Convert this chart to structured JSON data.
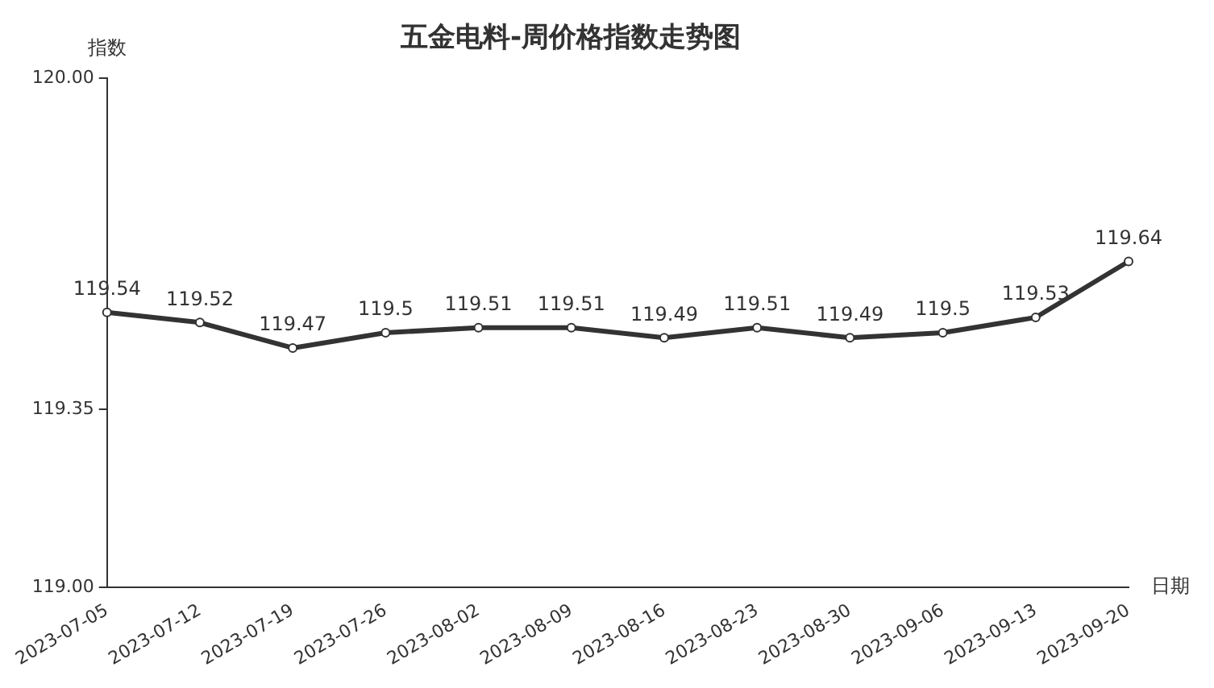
{
  "chart_data": {
    "type": "line",
    "title": "五金电料-周价格指数走势图",
    "xlabel": "日期",
    "ylabel": "指数",
    "categories": [
      "2023-07-05",
      "2023-07-12",
      "2023-07-19",
      "2023-07-26",
      "2023-08-02",
      "2023-08-09",
      "2023-08-16",
      "2023-08-23",
      "2023-08-30",
      "2023-09-06",
      "2023-09-13",
      "2023-09-20"
    ],
    "series": [
      {
        "color": "#333333",
        "values": [
          119.54,
          119.52,
          119.47,
          119.5,
          119.51,
          119.51,
          119.49,
          119.51,
          119.49,
          119.5,
          119.53,
          119.64
        ]
      }
    ],
    "ylim": [
      119,
      120
    ],
    "yticks": [
      {
        "value": 119,
        "label": "119.00"
      },
      {
        "value": 119.35,
        "label": "119.35"
      },
      {
        "value": 120,
        "label": "120.00"
      }
    ],
    "grid": false,
    "legend": false,
    "marker": "circle",
    "line_style": "solid",
    "data_labels": true
  }
}
